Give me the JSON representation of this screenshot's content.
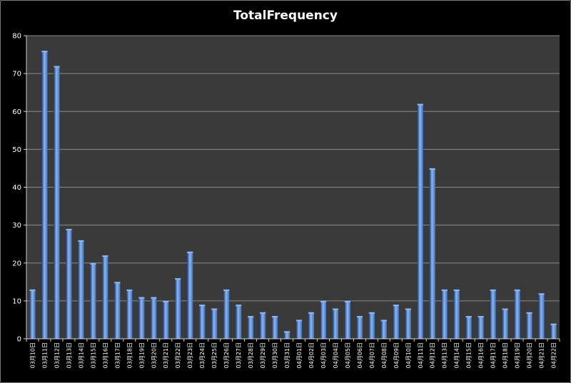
{
  "chart_data": {
    "type": "bar",
    "title": "TotalFrequency",
    "categories": [
      "03月10日",
      "03月11日",
      "03月12日",
      "03月13日",
      "03月14日",
      "03月15日",
      "03月16日",
      "03月17日",
      "03月18日",
      "03月19日",
      "03月20日",
      "03月21日",
      "03月22日",
      "03月23日",
      "03月24日",
      "03月25日",
      "03月26日",
      "03月27日",
      "03月28日",
      "03月29日",
      "03月30日",
      "03月31日",
      "04月01日",
      "04月02日",
      "04月03日",
      "04月04日",
      "04月05日",
      "04月06日",
      "04月07日",
      "04月08日",
      "04月09日",
      "04月10日",
      "04月11日",
      "04月12日",
      "04月13日",
      "04月14日",
      "04月15日",
      "04月16日",
      "04月17日",
      "04月18日",
      "04月19日",
      "04月20日",
      "04月21日",
      "04月22日"
    ],
    "values": [
      13,
      76,
      72,
      29,
      26,
      20,
      22,
      15,
      13,
      11,
      11,
      10,
      16,
      23,
      9,
      8,
      13,
      9,
      6,
      7,
      6,
      2,
      5,
      7,
      10,
      8,
      10,
      6,
      7,
      5,
      9,
      8,
      62,
      45,
      13,
      13,
      6,
      6,
      13,
      8,
      13,
      7,
      12,
      4
    ],
    "ylim": [
      0,
      80
    ],
    "yticks": [
      0,
      10,
      20,
      30,
      40,
      50,
      60,
      70,
      80
    ],
    "grid": true,
    "colors": {
      "bar": "#3d72c4",
      "bar_highlight": "#8fb6ef",
      "bar_shadow": "#1b3d78",
      "plot_bg": "#3a3a3a",
      "grid": "#8a8a8a",
      "text": "#ffffff"
    }
  }
}
